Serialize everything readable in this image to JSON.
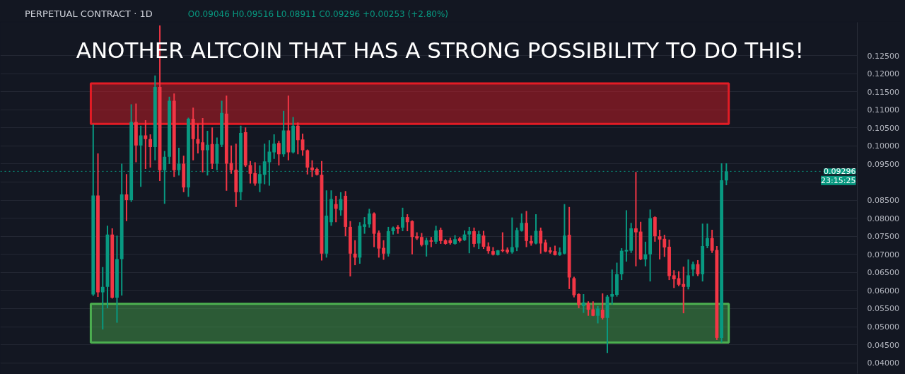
{
  "chart_data": {
    "type": "candlestick",
    "title": "PERPETUAL CONTRACT · 1D",
    "subtitle": "O0.09046 H0.09516 L0.08911 C0.09296 +0.00253 (+2.80%)",
    "categories": [
      null,
      null,
      null,
      null,
      null,
      null,
      null,
      null,
      null,
      null,
      null,
      null,
      null,
      null,
      null,
      null,
      null,
      null,
      null,
      null,
      null,
      null,
      null,
      null,
      null,
      null,
      null,
      null,
      null,
      null,
      null,
      null,
      null,
      null,
      null,
      null,
      null,
      null,
      null,
      null,
      null,
      null,
      null,
      null,
      null,
      null,
      null,
      null,
      null,
      null,
      null,
      null,
      null,
      null,
      null,
      null,
      null,
      null,
      null,
      null,
      null,
      null,
      null,
      null,
      null,
      null,
      null,
      null,
      null,
      null,
      null,
      null,
      null,
      null,
      null,
      null,
      null,
      null,
      null,
      null,
      null,
      null,
      null,
      null,
      null,
      null,
      null,
      null,
      null,
      null,
      null,
      null,
      null,
      null,
      null,
      null,
      null,
      null,
      null,
      null,
      null,
      null,
      null,
      null,
      null,
      null,
      null,
      null,
      null,
      null,
      null,
      null,
      null,
      null,
      null,
      null,
      null,
      null,
      null,
      null,
      null,
      null,
      null,
      null,
      null,
      null,
      null,
      null,
      null,
      null,
      null,
      null,
      null,
      null,
      null,
      null,
      null,
      null,
      null,
      null,
      null,
      null,
      null,
      null,
      null,
      null,
      null,
      null,
      null,
      null,
      null,
      null,
      null,
      null,
      null,
      null,
      null,
      null,
      null,
      null,
      null,
      null,
      null,
      null,
      null,
      null,
      null,
      null,
      null,
      null,
      null,
      null,
      null,
      null,
      null,
      null,
      null,
      null,
      null,
      null
    ],
    "ohlc": [
      null,
      null,
      null,
      null,
      null,
      null,
      null,
      null,
      null,
      null,
      null,
      null,
      null,
      null,
      null,
      null,
      null,
      null,
      null,
      [
        0.0589,
        0.106,
        0.0585,
        0.0863
      ],
      [
        0.0863,
        0.0979,
        0.0582,
        0.0595
      ],
      [
        0.0595,
        0.0665,
        0.0492,
        0.061
      ],
      [
        0.061,
        0.0779,
        0.0551,
        0.0755
      ],
      [
        0.0755,
        0.0772,
        0.0578,
        0.058
      ],
      [
        0.058,
        0.0752,
        0.0511,
        0.0687
      ],
      [
        0.0687,
        0.0951,
        0.0586,
        0.0866
      ],
      [
        0.0866,
        0.0922,
        0.0792,
        0.085
      ],
      [
        0.085,
        0.1115,
        0.0845,
        0.1066
      ],
      [
        0.1066,
        0.1117,
        0.0955,
        0.1001
      ],
      [
        0.1001,
        0.1056,
        0.0887,
        0.1029
      ],
      [
        0.1029,
        0.1071,
        0.0936,
        0.1019
      ],
      [
        0.1019,
        0.1032,
        0.094,
        0.0997
      ],
      [
        0.0997,
        0.1195,
        0.096,
        0.1163
      ],
      [
        0.1163,
        0.1333,
        0.0903,
        0.0933
      ],
      [
        0.0933,
        0.0986,
        0.084,
        0.097
      ],
      [
        0.097,
        0.1136,
        0.095,
        0.1125
      ],
      [
        0.1125,
        0.1145,
        0.0914,
        0.0933
      ],
      [
        0.0933,
        0.0995,
        0.0918,
        0.0951
      ],
      [
        0.0951,
        0.0973,
        0.0872,
        0.0885
      ],
      [
        0.0885,
        0.1078,
        0.0859,
        0.1075
      ],
      [
        0.1075,
        0.1106,
        0.096,
        0.1019
      ],
      [
        0.1019,
        0.1062,
        0.0979,
        0.1006
      ],
      [
        0.101,
        0.1077,
        0.0927,
        0.0988
      ],
      [
        0.0988,
        0.1042,
        0.0918,
        0.1003
      ],
      [
        0.1005,
        0.1051,
        0.0936,
        0.0951
      ],
      [
        0.0951,
        0.1023,
        0.0933,
        0.1005
      ],
      [
        0.1003,
        0.1125,
        0.0997,
        0.1091
      ],
      [
        0.1089,
        0.1139,
        0.0876,
        0.0951
      ],
      [
        0.0953,
        0.1001,
        0.0923,
        0.0933
      ],
      [
        0.0934,
        0.1006,
        0.0831,
        0.0872
      ],
      [
        0.0872,
        0.1056,
        0.085,
        0.1036
      ],
      [
        0.1038,
        0.1051,
        0.0942,
        0.0946
      ],
      [
        0.0947,
        0.0958,
        0.0896,
        0.0923
      ],
      [
        0.0925,
        0.0955,
        0.089,
        0.0896
      ],
      [
        0.0896,
        0.0946,
        0.0872,
        0.0922
      ],
      [
        0.092,
        0.1006,
        0.0894,
        0.0957
      ],
      [
        0.0955,
        0.1016,
        0.089,
        0.0984
      ],
      [
        0.0982,
        0.1032,
        0.0964,
        0.1006
      ],
      [
        0.1008,
        0.1014,
        0.0946,
        0.0977
      ],
      [
        0.0977,
        0.1097,
        0.097,
        0.1043
      ],
      [
        0.1043,
        0.1139,
        0.096,
        0.0982
      ],
      [
        0.0982,
        0.108,
        0.0979,
        0.1056
      ],
      [
        0.1056,
        0.1065,
        0.0977,
        0.1016
      ],
      [
        0.1018,
        0.1034,
        0.0973,
        0.0988
      ],
      [
        0.0988,
        0.099,
        0.0921,
        0.094
      ],
      [
        0.094,
        0.096,
        0.0914,
        0.0933
      ],
      [
        0.0936,
        0.094,
        0.0918,
        0.092
      ],
      [
        0.092,
        0.0958,
        0.0683,
        0.0702
      ],
      [
        0.0702,
        0.0877,
        0.0691,
        0.0807
      ],
      [
        0.0789,
        0.0877,
        0.0779,
        0.0853
      ],
      [
        0.0839,
        0.0862,
        0.0789,
        0.0826
      ],
      [
        0.0822,
        0.0872,
        0.0807,
        0.0853
      ],
      [
        0.0862,
        0.0875,
        0.075,
        0.0776
      ],
      [
        0.0776,
        0.0792,
        0.0639,
        0.0702
      ],
      [
        0.0702,
        0.0739,
        0.067,
        0.0691
      ],
      [
        0.0691,
        0.0789,
        0.0674,
        0.0779
      ],
      [
        0.0776,
        0.0803,
        0.0757,
        0.0783
      ],
      [
        0.0783,
        0.0826,
        0.0774,
        0.0813
      ],
      [
        0.0813,
        0.0816,
        0.072,
        0.0757
      ],
      [
        0.076,
        0.0766,
        0.0691,
        0.0716
      ],
      [
        0.0718,
        0.0739,
        0.0685,
        0.0702
      ],
      [
        0.0702,
        0.0776,
        0.0694,
        0.0764
      ],
      [
        0.0764,
        0.0777,
        0.0755,
        0.0774
      ],
      [
        0.0776,
        0.0781,
        0.0757,
        0.077
      ],
      [
        0.0774,
        0.0829,
        0.0764,
        0.0803
      ],
      [
        0.0803,
        0.0811,
        0.0764,
        0.0789
      ],
      [
        0.0792,
        0.0794,
        0.07,
        0.0748
      ],
      [
        0.075,
        0.0761,
        0.074,
        0.0744
      ],
      [
        0.0748,
        0.0759,
        0.0722,
        0.0726
      ],
      [
        0.0726,
        0.0746,
        0.0694,
        0.0739
      ],
      [
        0.0739,
        0.0748,
        0.072,
        0.0735
      ],
      [
        0.0735,
        0.0779,
        0.0729,
        0.0766
      ],
      [
        0.0768,
        0.0774,
        0.0729,
        0.0737
      ],
      [
        0.0739,
        0.0742,
        0.0727,
        0.0729
      ],
      [
        0.0739,
        0.0746,
        0.0727,
        0.0731
      ],
      [
        0.0729,
        0.0753,
        0.0727,
        0.0742
      ],
      [
        0.0744,
        0.0748,
        0.0733,
        0.0737
      ],
      [
        0.0739,
        0.0766,
        0.0737,
        0.0755
      ],
      [
        0.0755,
        0.0776,
        0.0703,
        0.0764
      ],
      [
        0.0764,
        0.0774,
        0.072,
        0.0729
      ],
      [
        0.073,
        0.0765,
        0.0715,
        0.0756
      ],
      [
        0.0752,
        0.0765,
        0.0715,
        0.0721
      ],
      [
        0.0722,
        0.0733,
        0.0702,
        0.0709
      ],
      [
        0.0709,
        0.072,
        0.0697,
        0.0699
      ],
      [
        0.0698,
        0.0712,
        0.0697,
        0.0711
      ],
      [
        0.0713,
        0.0761,
        0.0706,
        0.0709
      ],
      [
        0.0713,
        0.0719,
        0.0702,
        0.0706
      ],
      [
        0.0706,
        0.0802,
        0.0702,
        0.072
      ],
      [
        0.0719,
        0.0774,
        0.0709,
        0.0767
      ],
      [
        0.0765,
        0.0813,
        0.0763,
        0.0787
      ],
      [
        0.0787,
        0.082,
        0.072,
        0.0737
      ],
      [
        0.0737,
        0.0752,
        0.0724,
        0.073
      ],
      [
        0.073,
        0.0811,
        0.0728,
        0.0765
      ],
      [
        0.0765,
        0.0774,
        0.0702,
        0.073
      ],
      [
        0.0733,
        0.0741,
        0.0706,
        0.0708
      ],
      [
        0.0711,
        0.072,
        0.0702,
        0.0706
      ],
      [
        0.0709,
        0.0724,
        0.0697,
        0.0698
      ],
      [
        0.0698,
        0.0719,
        0.0696,
        0.0706
      ],
      [
        0.0702,
        0.0839,
        0.07,
        0.0752
      ],
      [
        0.0754,
        0.0831,
        0.0604,
        0.0636
      ],
      [
        0.0634,
        0.0638,
        0.0581,
        0.0587
      ],
      [
        0.059,
        0.0592,
        0.0551,
        0.056
      ],
      [
        0.0557,
        0.059,
        0.0538,
        0.0567
      ],
      [
        0.0565,
        0.057,
        0.053,
        0.0547
      ],
      [
        0.0548,
        0.057,
        0.0529,
        0.053
      ],
      [
        0.053,
        0.0557,
        0.0509,
        0.055
      ],
      [
        0.0547,
        0.0592,
        0.052,
        0.0524
      ],
      [
        0.0524,
        0.0588,
        0.0427,
        0.0583
      ],
      [
        0.0583,
        0.0658,
        0.0561,
        0.059
      ],
      [
        0.0588,
        0.0677,
        0.0583,
        0.0645
      ],
      [
        0.0645,
        0.0717,
        0.0629,
        0.071
      ],
      [
        0.0708,
        0.0822,
        0.068,
        0.0712
      ],
      [
        0.071,
        0.0787,
        0.0704,
        0.0772
      ],
      [
        0.0772,
        0.0928,
        0.0667,
        0.0761
      ],
      [
        0.0763,
        0.079,
        0.0684,
        0.0686
      ],
      [
        0.0686,
        0.0735,
        0.0667,
        0.07
      ],
      [
        0.07,
        0.0824,
        0.0625,
        0.08
      ],
      [
        0.0803,
        0.0805,
        0.0735,
        0.075
      ],
      [
        0.075,
        0.0768,
        0.0686,
        0.0741
      ],
      [
        0.0743,
        0.0754,
        0.0693,
        0.0719
      ],
      [
        0.0721,
        0.0741,
        0.0629,
        0.064
      ],
      [
        0.0642,
        0.0656,
        0.0607,
        0.0631
      ],
      [
        0.0634,
        0.0653,
        0.0612,
        0.0616
      ],
      [
        0.0618,
        0.0666,
        0.0537,
        0.061
      ],
      [
        0.061,
        0.0686,
        0.0603,
        0.0642
      ],
      [
        0.0658,
        0.068,
        0.064,
        0.0673
      ],
      [
        0.0673,
        0.0684,
        0.064,
        0.0645
      ],
      [
        0.0645,
        0.0785,
        0.0625,
        0.0723
      ],
      [
        0.0723,
        0.0785,
        0.0717,
        0.0745
      ],
      [
        0.0745,
        0.0768,
        0.0704,
        0.071
      ],
      [
        0.0712,
        0.0723,
        0.0463,
        0.0469
      ],
      [
        0.0469,
        0.0952,
        0.0456,
        0.0905
      ],
      [
        0.09046,
        0.09516,
        0.08911,
        0.09296
      ],
      null,
      null,
      null,
      null,
      null,
      null,
      null,
      null,
      null,
      null,
      null,
      null,
      null,
      null,
      null,
      null,
      null,
      null,
      null,
      null,
      null,
      null,
      null,
      null,
      null,
      null,
      null
    ],
    "colors": [
      null,
      null,
      null,
      null,
      null,
      null,
      null,
      null,
      null,
      null,
      null,
      null,
      null,
      null,
      null,
      null,
      null,
      null,
      null,
      "#089981",
      "#f23645",
      "#089981",
      "#089981",
      "#f23645",
      "#089981",
      "#089981",
      "#f23645",
      "#089981",
      "#f23645",
      "#089981",
      "#f23645",
      "#f23645",
      "#089981",
      "#f23645",
      "#089981",
      "#089981",
      "#f23645",
      "#089981",
      "#f23645",
      "#089981",
      "#f23645",
      "#f23645",
      "#f23645",
      "#089981",
      "#f23645",
      "#089981",
      "#089981",
      "#f23645",
      "#f23645",
      "#f23645",
      "#089981",
      "#f23645",
      "#f23645",
      "#f23645",
      "#089981",
      "#089981",
      "#089981",
      "#089981",
      "#f23645",
      "#089981",
      "#f23645",
      "#089981",
      "#f23645",
      "#f23645",
      "#f23645",
      "#f23645",
      "#f23645",
      "#f23645",
      "#089981",
      "#089981",
      "#f23645",
      "#089981",
      "#f23645",
      "#f23645",
      "#f23645",
      "#089981",
      "#089981",
      "#089981",
      "#f23645",
      "#f23645",
      "#f23645",
      "#089981",
      "#089981",
      "#f23645",
      "#089981",
      "#f23645",
      "#f23645",
      "#f23645",
      "#f23645",
      "#089981",
      "#f23645",
      "#089981",
      "#f23645",
      "#f23645",
      "#f23645",
      "#089981",
      "#f23645",
      "#089981",
      "#089981",
      "#f23645",
      "#089981",
      "#f23645",
      "#f23645",
      "#f23645",
      "#089981",
      "#f23645",
      "#f23645",
      "#089981",
      "#089981",
      "#089981",
      "#f23645",
      "#f23645",
      "#089981",
      "#f23645",
      "#f23645",
      "#f23645",
      "#f23645",
      "#089981",
      "#089981",
      "#f23645",
      "#f23645",
      "#f23645",
      "#089981",
      "#f23645",
      "#f23645",
      "#089981",
      "#f23645",
      "#089981",
      "#089981",
      "#089981",
      "#089981",
      "#089981",
      "#089981",
      "#f23645",
      "#f23645",
      "#089981",
      "#089981",
      "#f23645",
      "#f23645",
      "#f23645",
      "#f23645",
      "#f23645",
      "#f23645",
      "#f23645",
      "#089981",
      "#089981",
      "#f23645",
      "#089981",
      "#089981",
      "#f23645",
      "#f23645",
      "#089981",
      "#089981",
      null,
      null,
      null,
      null,
      null,
      null,
      null,
      null,
      null,
      null,
      null,
      null,
      null,
      null,
      null,
      null,
      null,
      null,
      null,
      null,
      null,
      null,
      null,
      null,
      null,
      null,
      null
    ],
    "ylim": [
      0.037,
      0.1342
    ],
    "yticks": [
      {
        "value": 0.04,
        "label": "0.04000"
      },
      {
        "value": 0.045,
        "label": "0.04500"
      },
      {
        "value": 0.05,
        "label": "0.05000"
      },
      {
        "value": 0.055,
        "label": "0.05500"
      },
      {
        "value": 0.06,
        "label": "0.06000"
      },
      {
        "value": 0.065,
        "label": "0.06500"
      },
      {
        "value": 0.07,
        "label": "0.07000"
      },
      {
        "value": 0.075,
        "label": "0.07500"
      },
      {
        "value": 0.08,
        "label": "0.08000"
      },
      {
        "value": 0.085,
        "label": "0.08500"
      },
      {
        "value": 0.09,
        "label": null
      },
      {
        "value": 0.095,
        "label": "0.09500"
      },
      {
        "value": 0.1,
        "label": "0.10000"
      },
      {
        "value": 0.105,
        "label": "0.10500"
      },
      {
        "value": 0.11,
        "label": "0.11000"
      },
      {
        "value": 0.115,
        "label": "0.11500"
      },
      {
        "value": 0.12,
        "label": "0.12000"
      },
      {
        "value": 0.125,
        "label": "0.12500"
      }
    ],
    "grid": "y",
    "bands": [
      {
        "axis": "y",
        "from": 0.1061,
        "to": 0.1173,
        "color": "#e31c25"
      },
      {
        "axis": "y",
        "from": 0.0456,
        "to": 0.0563,
        "color": "#4caf50"
      }
    ],
    "ref_lines": [
      {
        "axis": "y",
        "value": 0.09296,
        "label": "0.09296",
        "color": "#089981",
        "line_style": "dotted"
      }
    ],
    "annotations": [
      "ANOTHER ALTCOIN THAT HAS A STRONG POSSIBILITY TO DO THIS!",
      {
        "text": "23:15:25",
        "y": 0.09296
      }
    ]
  }
}
